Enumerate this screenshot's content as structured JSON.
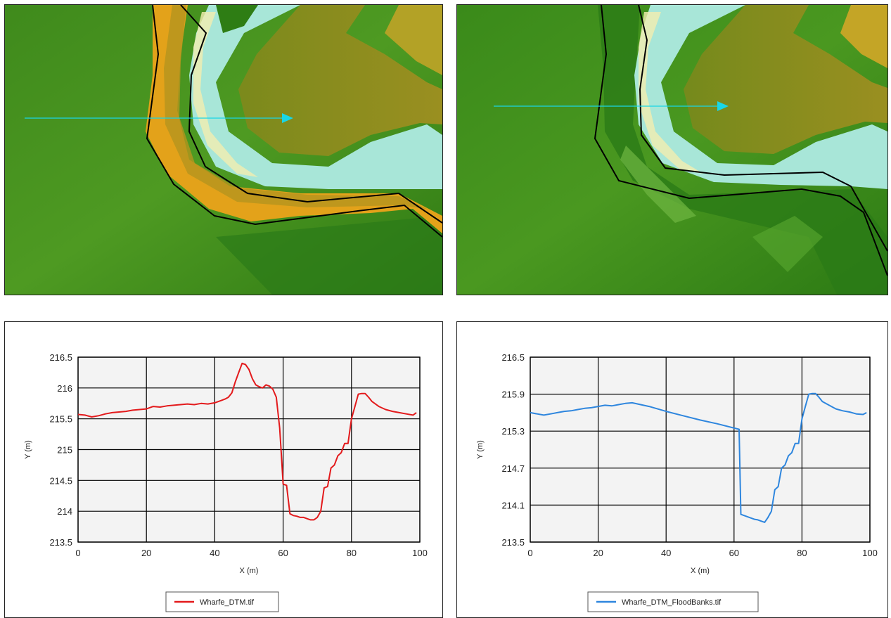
{
  "maps": [
    {
      "name": "Wharfe_DTM",
      "profile_arrow_color": "#19d6e6"
    },
    {
      "name": "Wharfe_DTM_FloodBanks",
      "profile_arrow_color": "#19d6e6"
    }
  ],
  "chart_data": [
    {
      "type": "line",
      "xlabel": "X (m)",
      "ylabel": "Y (m)",
      "xlim": [
        0,
        100
      ],
      "ylim": [
        213.5,
        216.5
      ],
      "xticks": [
        0,
        20,
        40,
        60,
        80,
        100
      ],
      "yticks": [
        213.5,
        214,
        214.5,
        215,
        215.5,
        216,
        216.5
      ],
      "ytick_labels": [
        "213.5",
        "214",
        "214.5",
        "215",
        "215.5",
        "216",
        "216.5"
      ],
      "xtick_labels": [
        "0",
        "20",
        "40",
        "60",
        "80",
        "100"
      ],
      "grid": true,
      "legend": "bottom-center",
      "series": [
        {
          "name": "Wharfe_DTM.tif",
          "color": "#e31a1c",
          "x": [
            0,
            2,
            4,
            6,
            8,
            10,
            12,
            14,
            16,
            18,
            20,
            22,
            24,
            26,
            28,
            30,
            32,
            34,
            36,
            38,
            40,
            42,
            43,
            44,
            45,
            46,
            47,
            48,
            49,
            50,
            51,
            52,
            53,
            54,
            55,
            56,
            57,
            58,
            59,
            59.5,
            60,
            61,
            62,
            63,
            64,
            65,
            66,
            67,
            68,
            69,
            70,
            71,
            72,
            73,
            74,
            75,
            76,
            77,
            78,
            79,
            80,
            81,
            82,
            83,
            84,
            85,
            86,
            88,
            90,
            92,
            94,
            96,
            98,
            99
          ],
          "y": [
            215.57,
            215.56,
            215.53,
            215.55,
            215.58,
            215.6,
            215.61,
            215.62,
            215.64,
            215.65,
            215.66,
            215.7,
            215.69,
            215.71,
            215.72,
            215.73,
            215.74,
            215.73,
            215.75,
            215.74,
            215.76,
            215.8,
            215.82,
            215.85,
            215.92,
            216.1,
            216.25,
            216.4,
            216.38,
            216.3,
            216.15,
            216.05,
            216.02,
            216.0,
            216.05,
            216.03,
            215.98,
            215.85,
            215.35,
            214.9,
            214.44,
            214.42,
            213.96,
            213.93,
            213.92,
            213.9,
            213.9,
            213.88,
            213.86,
            213.86,
            213.9,
            214.0,
            214.38,
            214.4,
            214.7,
            214.75,
            214.9,
            214.95,
            215.1,
            215.1,
            215.5,
            215.7,
            215.9,
            215.91,
            215.91,
            215.85,
            215.78,
            215.7,
            215.65,
            215.62,
            215.6,
            215.58,
            215.56,
            215.6
          ]
        }
      ]
    },
    {
      "type": "line",
      "xlabel": "X (m)",
      "ylabel": "Y (m)",
      "xlim": [
        0,
        100
      ],
      "ylim": [
        213.5,
        216.5
      ],
      "xticks": [
        0,
        20,
        40,
        60,
        80,
        100
      ],
      "yticks": [
        213.5,
        214.1,
        214.7,
        215.3,
        215.9,
        216.5
      ],
      "ytick_labels": [
        "213.5",
        "214.1",
        "214.7",
        "215.3",
        "215.9",
        "216.5"
      ],
      "xtick_labels": [
        "0",
        "20",
        "40",
        "60",
        "80",
        "100"
      ],
      "grid": true,
      "legend": "bottom-center",
      "series": [
        {
          "name": "Wharfe_DTM_FloodBanks.tif",
          "color": "#2e86de",
          "x": [
            0,
            2,
            4,
            6,
            8,
            10,
            12,
            14,
            16,
            18,
            20,
            22,
            24,
            26,
            28,
            30,
            35,
            40,
            45,
            50,
            55,
            61.5,
            62,
            63,
            64,
            65,
            66,
            67,
            68,
            69,
            70,
            71,
            72,
            73,
            74,
            75,
            76,
            77,
            78,
            79,
            80,
            81,
            82,
            83,
            84,
            85,
            86,
            88,
            90,
            92,
            94,
            96,
            98,
            99
          ],
          "y": [
            215.6,
            215.58,
            215.56,
            215.58,
            215.6,
            215.62,
            215.63,
            215.65,
            215.67,
            215.68,
            215.7,
            215.72,
            215.71,
            215.73,
            215.75,
            215.76,
            215.7,
            215.62,
            215.55,
            215.48,
            215.42,
            215.33,
            213.95,
            213.93,
            213.91,
            213.89,
            213.87,
            213.86,
            213.84,
            213.82,
            213.9,
            214.0,
            214.35,
            214.4,
            214.7,
            214.75,
            214.9,
            214.95,
            215.1,
            215.1,
            215.5,
            215.7,
            215.9,
            215.91,
            215.91,
            215.85,
            215.78,
            215.72,
            215.66,
            215.63,
            215.61,
            215.58,
            215.57,
            215.6
          ]
        }
      ]
    }
  ]
}
